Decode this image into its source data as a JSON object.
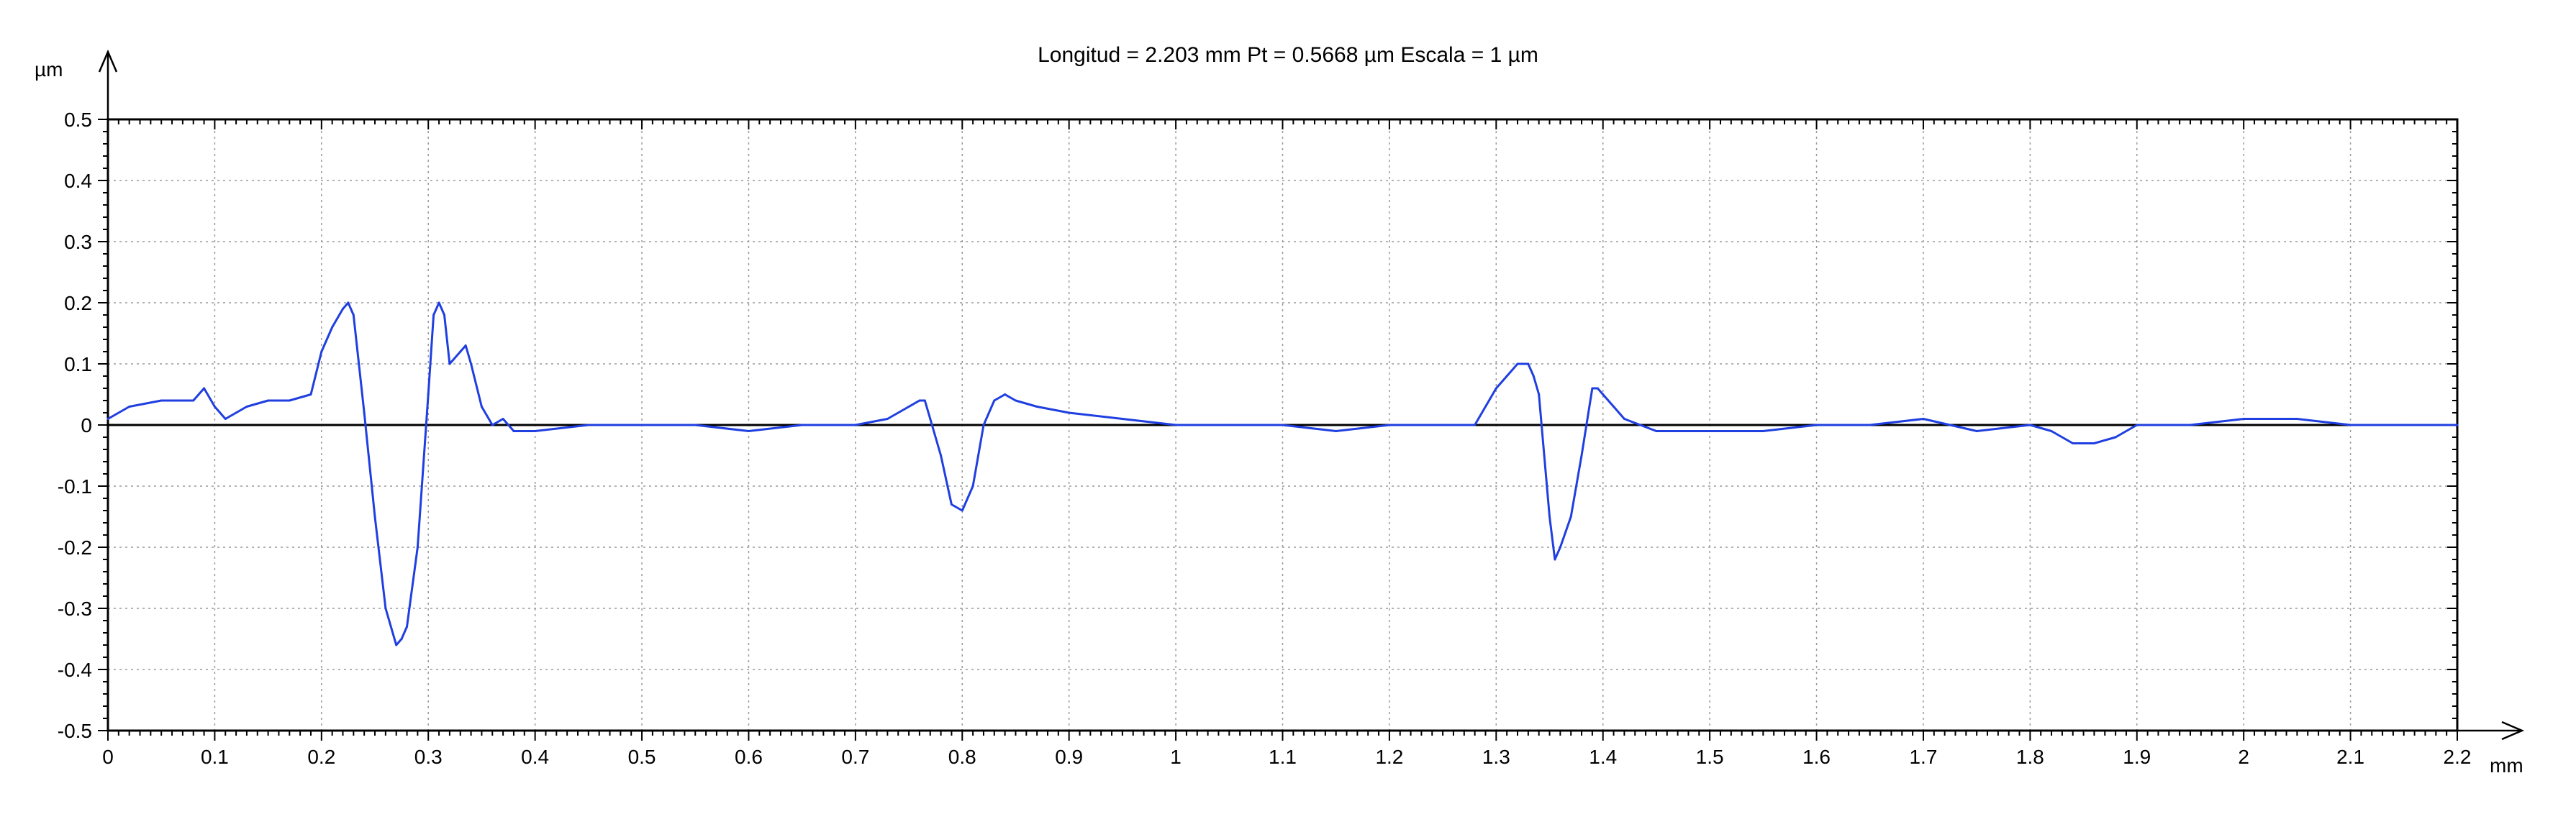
{
  "chart_data": {
    "type": "line",
    "title": "Longitud = 2.203 mm  Pt = 0.5668 µm  Escala = 1 µm",
    "xlabel": "mm",
    "ylabel": "µm",
    "xlim": [
      0,
      2.2
    ],
    "ylim": [
      -0.5,
      0.5
    ],
    "xticks": [
      0,
      0.1,
      0.2,
      0.3,
      0.4,
      0.5,
      0.6,
      0.7,
      0.8,
      0.9,
      1,
      1.1,
      1.2,
      1.3,
      1.4,
      1.5,
      1.6,
      1.7,
      1.8,
      1.9,
      2,
      2.1,
      2.2
    ],
    "xtick_labels": [
      "0",
      "0.1",
      "0.2",
      "0.3",
      "0.4",
      "0.5",
      "0.6",
      "0.7",
      "0.8",
      "0.9",
      "1",
      "1.1",
      "1.2",
      "1.3",
      "1.4",
      "1.5",
      "1.6",
      "1.7",
      "1.8",
      "1.9",
      "2",
      "2.1",
      "2.2"
    ],
    "yticks": [
      0.5,
      0.4,
      0.3,
      0.2,
      0.1,
      0,
      -0.1,
      -0.2,
      -0.3,
      -0.4,
      -0.5
    ],
    "ytick_labels": [
      "0.5",
      "0.4",
      "0.3",
      "0.2",
      "0.1",
      "0",
      "-0.1",
      "-0.2",
      "-0.3",
      "-0.4",
      "-0.5"
    ],
    "grid": true,
    "zero_line": true,
    "series": [
      {
        "color": "#1f3fe0",
        "x": [
          0,
          0.02,
          0.05,
          0.08,
          0.09,
          0.1,
          0.11,
          0.12,
          0.13,
          0.15,
          0.17,
          0.19,
          0.2,
          0.21,
          0.22,
          0.225,
          0.23,
          0.24,
          0.25,
          0.26,
          0.27,
          0.275,
          0.28,
          0.29,
          0.3,
          0.305,
          0.31,
          0.315,
          0.32,
          0.33,
          0.335,
          0.34,
          0.35,
          0.36,
          0.37,
          0.38,
          0.4,
          0.45,
          0.5,
          0.55,
          0.6,
          0.65,
          0.7,
          0.73,
          0.75,
          0.76,
          0.765,
          0.77,
          0.78,
          0.79,
          0.8,
          0.81,
          0.82,
          0.83,
          0.84,
          0.85,
          0.87,
          0.9,
          0.95,
          1.0,
          1.05,
          1.1,
          1.15,
          1.2,
          1.25,
          1.28,
          1.3,
          1.31,
          1.32,
          1.33,
          1.335,
          1.34,
          1.345,
          1.35,
          1.355,
          1.36,
          1.37,
          1.38,
          1.39,
          1.395,
          1.4,
          1.41,
          1.42,
          1.45,
          1.5,
          1.55,
          1.6,
          1.65,
          1.7,
          1.75,
          1.8,
          1.82,
          1.84,
          1.86,
          1.88,
          1.9,
          1.95,
          2.0,
          2.05,
          2.1,
          2.15,
          2.2
        ],
        "y": [
          0.01,
          0.03,
          0.04,
          0.04,
          0.06,
          0.03,
          0.01,
          0.02,
          0.03,
          0.04,
          0.04,
          0.05,
          0.12,
          0.16,
          0.19,
          0.2,
          0.18,
          0.02,
          -0.15,
          -0.3,
          -0.36,
          -0.35,
          -0.33,
          -0.2,
          0.05,
          0.18,
          0.2,
          0.18,
          0.1,
          0.12,
          0.13,
          0.1,
          0.03,
          0.0,
          0.01,
          -0.01,
          -0.01,
          0.0,
          0.0,
          0.0,
          -0.01,
          0.0,
          0.0,
          0.01,
          0.03,
          0.04,
          0.04,
          0.01,
          -0.05,
          -0.13,
          -0.14,
          -0.1,
          0.0,
          0.04,
          0.05,
          0.04,
          0.03,
          0.02,
          0.01,
          0.0,
          0.0,
          0.0,
          -0.01,
          0.0,
          0.0,
          0.0,
          0.06,
          0.08,
          0.1,
          0.1,
          0.08,
          0.05,
          -0.05,
          -0.15,
          -0.22,
          -0.2,
          -0.15,
          -0.05,
          0.06,
          0.06,
          0.05,
          0.03,
          0.01,
          -0.01,
          -0.01,
          -0.01,
          0.0,
          0.0,
          0.01,
          -0.01,
          0.0,
          -0.01,
          -0.03,
          -0.03,
          -0.02,
          0.0,
          0.0,
          0.01,
          0.01,
          0.0,
          0.0,
          0.0
        ]
      }
    ]
  }
}
